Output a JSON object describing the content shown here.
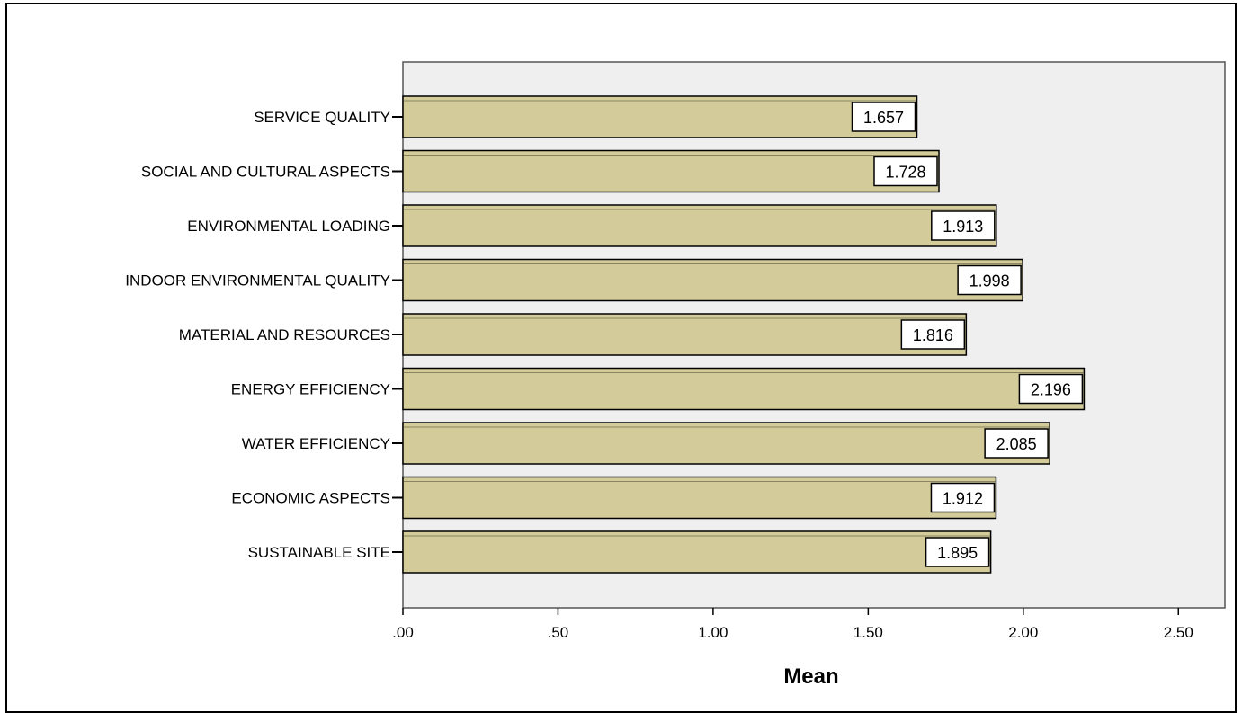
{
  "chart_data": {
    "type": "bar",
    "orientation": "horizontal",
    "title": "",
    "xlabel": "Mean",
    "ylabel": "",
    "categories": [
      "SERVICE QUALITY",
      "SOCIAL AND CULTURAL ASPECTS",
      "ENVIRONMENTAL LOADING",
      "INDOOR ENVIRONMENTAL QUALITY",
      "MATERIAL AND RESOURCES",
      "ENERGY EFFICIENCY",
      "WATER EFFICIENCY",
      "ECONOMIC ASPECTS",
      "SUSTAINABLE SITE"
    ],
    "values": [
      1.657,
      1.728,
      1.913,
      1.998,
      1.816,
      2.196,
      2.085,
      1.912,
      1.895
    ],
    "value_labels": [
      "1.657",
      "1.728",
      "1.913",
      "1.998",
      "1.816",
      "2.196",
      "2.085",
      "1.912",
      "1.895"
    ],
    "xlim": [
      0,
      2.65
    ],
    "ticks": [
      0,
      0.5,
      1.0,
      1.5,
      2.0,
      2.5
    ],
    "tick_labels": [
      ".00",
      ".50",
      "1.00",
      "1.50",
      "2.00",
      "2.50"
    ],
    "grid": false,
    "legend": "none",
    "colors": {
      "bar_fill": "#d3cc9a",
      "bar_stroke": "#000000",
      "plot_background": "#efefef",
      "label_background": "#ffffff"
    }
  }
}
